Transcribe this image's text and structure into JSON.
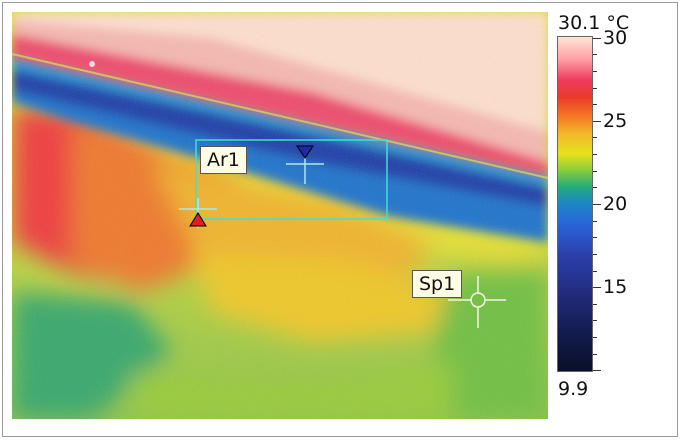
{
  "scale": {
    "max_label": "30.1 °C",
    "min_label": "9.9",
    "ticks": [
      {
        "label": "30",
        "value": 30
      },
      {
        "label": "25",
        "value": 25
      },
      {
        "label": "20",
        "value": 20
      },
      {
        "label": "15",
        "value": 15
      }
    ],
    "min": 9.9,
    "max": 30.1
  },
  "markers": {
    "area_label": "Ar1",
    "spot_label": "Sp1"
  },
  "colors": {
    "area_box": "#40e0d0",
    "max_marker": "#e02020",
    "min_marker": "#1a2aa8"
  }
}
